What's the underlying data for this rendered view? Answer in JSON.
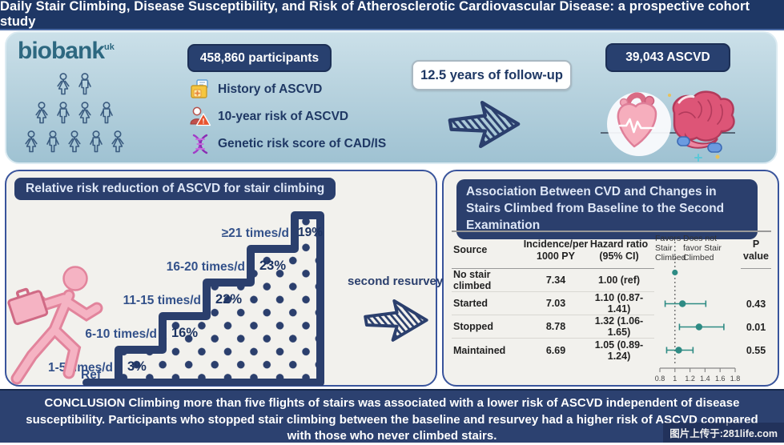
{
  "colors": {
    "navy_bar": "#1e3765",
    "navy_box": "#2b3f6d",
    "panel_blue_top": "#cbe0e9",
    "panel_blue_bottom": "#9fc2d2",
    "panel_bg": "#f2f1ed",
    "stair_navy": "#2b3f6d",
    "label_navy": "#33518a",
    "pct_navy": "#1d3462",
    "teal_forest": "#2e8b84",
    "pink_figure": "#f5b3c3",
    "pink_outline": "#e2849c",
    "logo_teal": "#2d6880"
  },
  "title_bar": {
    "text": "Daily Stair Climbing, Disease Susceptibility, and Risk of Atherosclerotic Cardiovascular Disease: a prospective cohort study"
  },
  "top_section": {
    "logo_text": "biobank",
    "logo_sup": "uk",
    "participants_label": "458,860 participants",
    "items": [
      {
        "icon": "medical-record-icon",
        "label": "History of ASCVD"
      },
      {
        "icon": "risk-person-icon",
        "label": "10-year risk of ASCVD"
      },
      {
        "icon": "dna-icon",
        "label": "Genetic risk score of CAD/IS"
      }
    ],
    "followup_label": "12.5 years of follow-up",
    "outcome_label": "39,043 ASCVD"
  },
  "left_panel": {
    "header": "Relative risk reduction of ASCVD for stair climbing",
    "resurvey_label": "second resurvey",
    "chart_data": {
      "type": "bar",
      "title": "Relative risk reduction of ASCVD for stair climbing",
      "categories": [
        "Ref",
        "1-5 times/d",
        "6-10 times/d",
        "11-15 times/d",
        "16-20 times/d",
        "≥21 times/d"
      ],
      "values": [
        0,
        3,
        16,
        22,
        23,
        19
      ],
      "value_labels": [
        "",
        "3%",
        "16%",
        "22%",
        "23%",
        "19%"
      ],
      "ylabel": "Relative risk reduction of ASCVD (%)"
    }
  },
  "right_panel": {
    "header": "Association Between CVD and Changes in Stairs Climbed from Baseline to the Second Examination",
    "table": {
      "col_source": "Source",
      "col_incidence": "Incidence/per 1000 PY",
      "col_hazard": "Hazard ratio (95% CI)",
      "col_favors": "Favors Stair Climbed",
      "col_not_favors": "Does not favor Stair Climbed",
      "col_p": "P value",
      "rows": [
        {
          "source": "No stair climbed",
          "incidence": "7.34",
          "hazard": "1.00 (ref)",
          "p": ""
        },
        {
          "source": "Started",
          "incidence": "7.03",
          "hazard": "1.10 (0.87-1.41)",
          "p": "0.43"
        },
        {
          "source": "Stopped",
          "incidence": "8.78",
          "hazard": "1.32 (1.06-1.65)",
          "p": "0.01"
        },
        {
          "source": "Maintained",
          "incidence": "6.69",
          "hazard": "1.05 (0.89-1.24)",
          "p": "0.55"
        }
      ]
    },
    "chart_data": {
      "type": "scatter",
      "subtype": "forest-plot",
      "series": [
        {
          "name": "No stair climbed",
          "hr": 1.0,
          "ci_low": null,
          "ci_high": null,
          "p": null
        },
        {
          "name": "Started",
          "hr": 1.1,
          "ci_low": 0.87,
          "ci_high": 1.41,
          "p": 0.43
        },
        {
          "name": "Stopped",
          "hr": 1.32,
          "ci_low": 1.06,
          "ci_high": 1.65,
          "p": 0.01
        },
        {
          "name": "Maintained",
          "hr": 1.05,
          "ci_low": 0.89,
          "ci_high": 1.24,
          "p": 0.55
        }
      ],
      "xlim": [
        0.8,
        1.8
      ],
      "x_ticks": [
        "0.8",
        "1",
        "1.2",
        "1.4",
        "1.6",
        "1.8"
      ],
      "reference_line": 1,
      "point_color": "#2e8b84"
    }
  },
  "conclusion": "CONCLUSION Climbing more than five flights of stairs was associated with a lower risk of ASCVD  independent of disease susceptibility. Participants who stopped stair climbing between the baseline and resurvey had a higher risk of ASCVD compared with those who never climbed stairs.",
  "watermark": "图片上传于:281life.com"
}
